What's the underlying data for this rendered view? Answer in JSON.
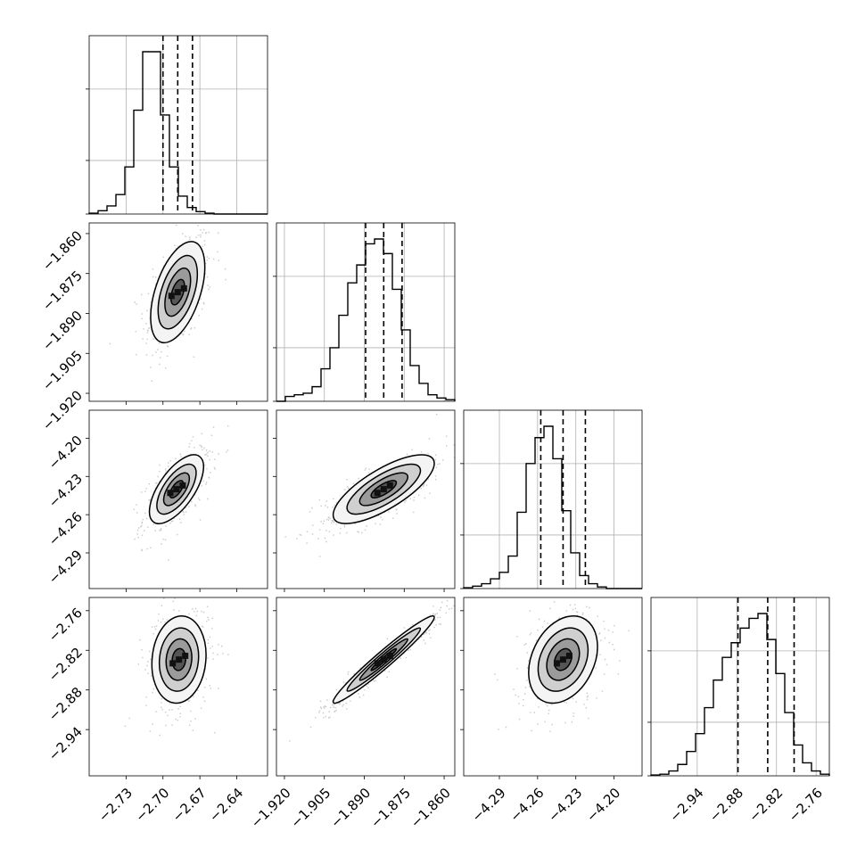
{
  "chart_data": {
    "type": "corner",
    "grid": true,
    "parameters": [
      {
        "range": [
          -2.76,
          -2.615
        ],
        "ticks": [
          "−2.73",
          "−2.70",
          "−2.67",
          "−2.64"
        ],
        "tick_values": [
          -2.73,
          -2.7,
          -2.67,
          -2.64
        ],
        "quantiles": [
          -2.7,
          -2.688,
          -2.676
        ],
        "hist": [
          0.005,
          0.02,
          0.05,
          0.12,
          0.29,
          0.64,
          1.0,
          1.0,
          0.61,
          0.29,
          0.11,
          0.04,
          0.015,
          0.005,
          0,
          0,
          0,
          0,
          0,
          0
        ]
      },
      {
        "range": [
          -1.923,
          -1.856
        ],
        "ticks": [
          "−1.920",
          "−1.905",
          "−1.890",
          "−1.875",
          "−1.860"
        ],
        "tick_values": [
          -1.92,
          -1.905,
          -1.89,
          -1.875,
          -1.86
        ],
        "quantiles": [
          -1.8895,
          -1.8827,
          -1.8758
        ],
        "hist": [
          0,
          0.03,
          0.04,
          0.05,
          0.09,
          0.2,
          0.33,
          0.53,
          0.73,
          0.84,
          0.97,
          1.0,
          0.91,
          0.69,
          0.44,
          0.22,
          0.11,
          0.04,
          0.02,
          0.01
        ]
      },
      {
        "range": [
          -4.318,
          -4.178
        ],
        "ticks": [
          "−4.29",
          "−4.26",
          "−4.23",
          "−4.20"
        ],
        "tick_values": [
          -4.29,
          -4.26,
          -4.23,
          -4.2
        ],
        "quantiles": [
          -4.2575,
          -4.24,
          -4.2225
        ],
        "hist": [
          0.005,
          0.015,
          0.03,
          0.06,
          0.1,
          0.2,
          0.47,
          0.77,
          0.93,
          1.0,
          0.8,
          0.48,
          0.22,
          0.08,
          0.03,
          0.01,
          0,
          0,
          0,
          0
        ]
      },
      {
        "range": [
          -3.01,
          -2.74
        ],
        "ticks": [
          "−2.94",
          "−2.88",
          "−2.82",
          "−2.76"
        ],
        "tick_values": [
          -2.94,
          -2.88,
          -2.82,
          -2.76
        ],
        "quantiles": [
          -2.8783,
          -2.8333,
          -2.7933
        ],
        "hist": [
          0.005,
          0.01,
          0.03,
          0.07,
          0.15,
          0.26,
          0.42,
          0.59,
          0.73,
          0.82,
          0.91,
          0.97,
          1.0,
          0.84,
          0.63,
          0.39,
          0.19,
          0.08,
          0.03,
          0.01
        ]
      }
    ],
    "pairs": [
      {
        "row": 1,
        "col": 0,
        "center": [
          -2.688,
          -1.882
        ],
        "sd": [
          0.011,
          0.0095
        ],
        "corr": 0.5
      },
      {
        "row": 2,
        "col": 0,
        "center": [
          -2.689,
          -4.24
        ],
        "sd": [
          0.011,
          0.0135
        ],
        "corr": 0.65
      },
      {
        "row": 2,
        "col": 1,
        "center": [
          -1.8827,
          -4.24
        ],
        "sd": [
          0.0095,
          0.0135
        ],
        "corr": 0.75
      },
      {
        "row": 3,
        "col": 0,
        "center": [
          -2.687,
          -2.834
        ],
        "sd": [
          0.011,
          0.033
        ],
        "corr": 0.1
      },
      {
        "row": 3,
        "col": 1,
        "center": [
          -1.8827,
          -2.834
        ],
        "sd": [
          0.0095,
          0.033
        ],
        "corr": 0.97
      },
      {
        "row": 3,
        "col": 2,
        "center": [
          -4.24,
          -2.834
        ],
        "sd": [
          0.0135,
          0.033
        ],
        "corr": 0.3
      }
    ],
    "colors": {
      "line": "#000000",
      "grid": "#b0b0b0",
      "points": "#9a9a9a"
    }
  }
}
